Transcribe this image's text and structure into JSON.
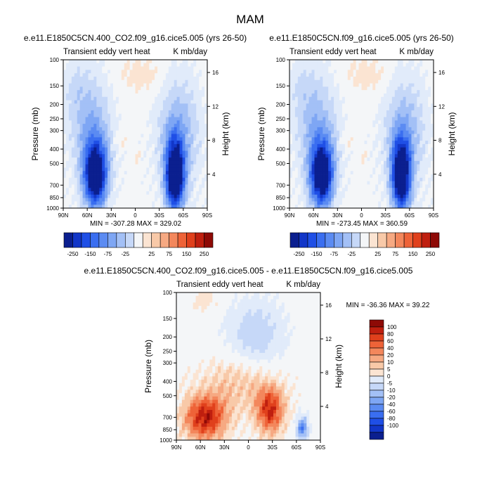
{
  "figure": {
    "title": "MAM"
  },
  "colors": {
    "neg": [
      "#0b1f8f",
      "#1236c8",
      "#1f4fe6",
      "#3a6ef0",
      "#5b8bf2",
      "#7ea6f4",
      "#a3c0f6",
      "#c6d8f8",
      "#e1ebfa"
    ],
    "zero": "#f4f6f8",
    "pos": [
      "#fbe4d2",
      "#f8c9a8",
      "#f6a982",
      "#f3875c",
      "#ee6338",
      "#e0401c",
      "#bf1f0f",
      "#8e0a06"
    ]
  },
  "chart_data": [
    {
      "type": "contour",
      "title": "e.e11.E1850C5CN.400_CO2.f09_g16.cice5.005 (yrs 26-50)",
      "left_label": "Transient eddy vert heat",
      "right_label": "K mb/day",
      "xlabel": "",
      "ylabel": "Pressure (mb)",
      "ylabel_right": "Height (km)",
      "x_ticks": [
        "90N",
        "60N",
        "30N",
        "0",
        "30S",
        "60S",
        "90S"
      ],
      "x_values": [
        90,
        60,
        30,
        0,
        -30,
        -60,
        -90
      ],
      "y_ticks": [
        "100",
        "150",
        "200",
        "250",
        "300",
        "400",
        "500",
        "700",
        "850",
        "1000"
      ],
      "y_values": [
        100,
        150,
        200,
        250,
        300,
        400,
        500,
        700,
        850,
        1000
      ],
      "right_ticks": [
        "16",
        "12",
        "8",
        "4"
      ],
      "right_values": [
        16,
        12,
        8,
        4
      ],
      "ylim": [
        100,
        1000
      ],
      "stats": "MIN = -307.28   MAX = 329.02",
      "min": -307.28,
      "max": 329.02
    },
    {
      "type": "contour",
      "title": "e.e11.E1850C5CN.f09_g16.cice5.005 (yrs 26-50)",
      "left_label": "Transient eddy vert heat",
      "right_label": "K mb/day",
      "xlabel": "",
      "ylabel": "Pressure (mb)",
      "ylabel_right": "Height (km)",
      "x_ticks": [
        "90N",
        "60N",
        "30N",
        "0",
        "30S",
        "60S",
        "90S"
      ],
      "x_values": [
        90,
        60,
        30,
        0,
        -30,
        -60,
        -90
      ],
      "y_ticks": [
        "100",
        "150",
        "200",
        "250",
        "300",
        "400",
        "500",
        "700",
        "850",
        "1000"
      ],
      "y_values": [
        100,
        150,
        200,
        250,
        300,
        400,
        500,
        700,
        850,
        1000
      ],
      "right_ticks": [
        "16",
        "12",
        "8",
        "4"
      ],
      "right_values": [
        16,
        12,
        8,
        4
      ],
      "ylim": [
        100,
        1000
      ],
      "stats": "MIN = -273.45   MAX = 360.59",
      "min": -273.45,
      "max": 360.59
    },
    {
      "type": "contour",
      "title": "e.e11.E1850C5CN.400_CO2.f09_g16.cice5.005 - e.e11.E1850C5CN.f09_g16.cice5.005",
      "left_label": "Transient eddy vert heat",
      "right_label": "K mb/day",
      "xlabel": "",
      "ylabel": "Pressure (mb)",
      "ylabel_right": "Height (km)",
      "x_ticks": [
        "90N",
        "60N",
        "30N",
        "0",
        "30S",
        "60S",
        "90S"
      ],
      "x_values": [
        90,
        60,
        30,
        0,
        -30,
        -60,
        -90
      ],
      "y_ticks": [
        "100",
        "150",
        "200",
        "250",
        "300",
        "400",
        "500",
        "700",
        "850",
        "1000"
      ],
      "y_values": [
        100,
        150,
        200,
        250,
        300,
        400,
        500,
        700,
        850,
        1000
      ],
      "right_ticks": [
        "16",
        "12",
        "8",
        "4"
      ],
      "right_values": [
        16,
        12,
        8,
        4
      ],
      "ylim": [
        100,
        1000
      ],
      "stats": "MIN = -36.36   MAX = 39.22",
      "min": -36.36,
      "max": 39.22
    }
  ],
  "colorbar_top": {
    "labels": [
      "-250",
      "-150",
      "-75",
      "-25",
      "25",
      "75",
      "150",
      "250"
    ],
    "levels": [
      -250,
      -200,
      -150,
      -100,
      -75,
      -50,
      -25,
      -10,
      10,
      25,
      50,
      75,
      100,
      150,
      200,
      250
    ]
  },
  "colorbar_diff": {
    "labels": [
      "100",
      "80",
      "60",
      "40",
      "20",
      "10",
      "5",
      "0",
      "-5",
      "-10",
      "-20",
      "-40",
      "-60",
      "-80",
      "-100"
    ],
    "levels": [
      100,
      80,
      60,
      40,
      20,
      10,
      5,
      0,
      -5,
      -10,
      -20,
      -40,
      -60,
      -80,
      -100
    ]
  }
}
